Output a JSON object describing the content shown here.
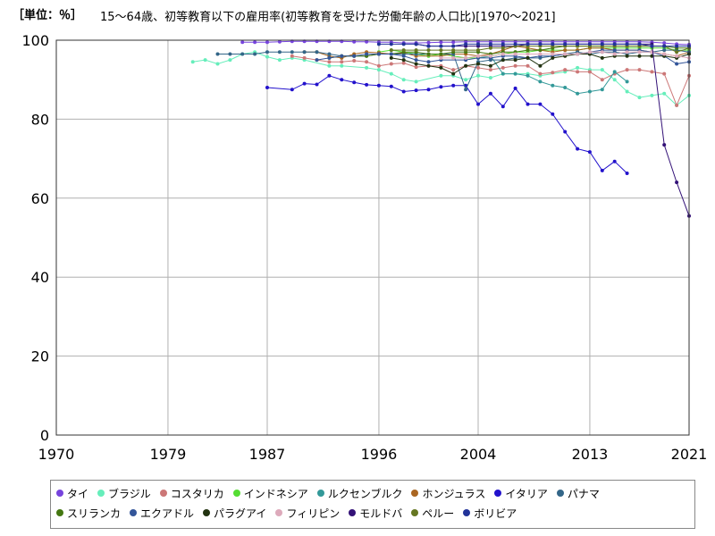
{
  "header": {
    "unit": "［単位：％］",
    "title": "15～64歳、初等教育以下の雇用率(初等教育を受けた労働年齢の人口比)[1970～2021]"
  },
  "chart_data": {
    "type": "line",
    "xlim": [
      1970,
      2021
    ],
    "ylim": [
      0,
      100
    ],
    "x_ticks": [
      1970,
      1979,
      1987,
      1996,
      2004,
      2013,
      2021
    ],
    "y_ticks": [
      0,
      20,
      40,
      60,
      80,
      100
    ],
    "grid": true,
    "legend_position": "bottom",
    "series": [
      {
        "name": "タイ",
        "color": "#7744dd",
        "x": [
          1985,
          1986,
          1987,
          1988,
          1989,
          1990,
          1991,
          1992,
          1993,
          1994,
          1995,
          1996,
          1997,
          1998,
          1999,
          2000,
          2001,
          2002,
          2003,
          2004,
          2005,
          2006,
          2007,
          2008,
          2009,
          2010,
          2011,
          2012,
          2013,
          2014,
          2015,
          2016,
          2017,
          2018,
          2019,
          2020,
          2021
        ],
        "y": [
          99.5,
          99.5,
          99.5,
          99.6,
          99.7,
          99.7,
          99.7,
          99.7,
          99.7,
          99.6,
          99.6,
          99.5,
          99.5,
          99.3,
          99.3,
          99.4,
          99.5,
          99.5,
          99.6,
          99.6,
          99.6,
          99.6,
          99.6,
          99.6,
          99.6,
          99.6,
          99.6,
          99.6,
          99.6,
          99.6,
          99.6,
          99.6,
          99.6,
          99.5,
          99.3,
          99.0,
          98.9
        ]
      },
      {
        "name": "ブラジル",
        "color": "#66eebb",
        "x": [
          1981,
          1982,
          1983,
          1984,
          1985,
          1986,
          1987,
          1988,
          1989,
          1990,
          1992,
          1993,
          1995,
          1996,
          1997,
          1998,
          1999,
          2001,
          2002,
          2003,
          2004,
          2005,
          2006,
          2007,
          2008,
          2009,
          2011,
          2012,
          2013,
          2014,
          2015,
          2016,
          2017,
          2018,
          2019,
          2020,
          2021
        ],
        "y": [
          94.5,
          95,
          94,
          95,
          96.5,
          97,
          95.8,
          95,
          95.5,
          95,
          93.5,
          93.5,
          93,
          92.5,
          91.5,
          90,
          89.5,
          91,
          91,
          90,
          91,
          90.5,
          91.5,
          91.5,
          91.5,
          91,
          92,
          93,
          92.5,
          92.5,
          90,
          87,
          85.5,
          86,
          86.5,
          83.5,
          86
        ]
      },
      {
        "name": "コスタリカ",
        "color": "#cc7777",
        "x": [
          1989,
          1990,
          1991,
          1992,
          1993,
          1994,
          1995,
          1996,
          1997,
          1998,
          1999,
          2000,
          2001,
          2002,
          2003,
          2004,
          2005,
          2006,
          2007,
          2008,
          2009,
          2010,
          2011,
          2012,
          2013,
          2014,
          2015,
          2016,
          2017,
          2018,
          2019,
          2020,
          2021
        ],
        "y": [
          96,
          95.5,
          95,
          94.5,
          94.5,
          94.8,
          94.5,
          93.5,
          94,
          94.2,
          93.2,
          93.5,
          93.5,
          92.5,
          93.5,
          93,
          92.5,
          93,
          93.5,
          93.5,
          91.5,
          91.8,
          92.5,
          92,
          92,
          90,
          91.5,
          92.5,
          92.5,
          92,
          91.5,
          83.5,
          91
        ]
      },
      {
        "name": "インドネシア",
        "color": "#55dd33",
        "x": [
          1996,
          1997,
          1998,
          1999,
          2000,
          2001,
          2002,
          2003,
          2004,
          2005,
          2006,
          2007,
          2008,
          2009,
          2010,
          2011,
          2012,
          2013,
          2014,
          2015,
          2016,
          2017,
          2018,
          2019,
          2020,
          2021
        ],
        "y": [
          97,
          97.5,
          97,
          96.5,
          96,
          96.5,
          96,
          95.5,
          95.5,
          96,
          96.5,
          97,
          97,
          97.5,
          97.5,
          97.5,
          97.5,
          98,
          98,
          98,
          98,
          98,
          98,
          98,
          97.5,
          97.5
        ]
      },
      {
        "name": "ルクセンブルク",
        "color": "#339999",
        "x": [
          2004,
          2005,
          2006,
          2007,
          2008,
          2009,
          2010,
          2011,
          2012,
          2013,
          2014,
          2015,
          2016
        ],
        "y": [
          95.5,
          96,
          91.5,
          91.5,
          91,
          89.5,
          88.5,
          88,
          86.5,
          87,
          87.5,
          92,
          89.5
        ]
      },
      {
        "name": "ホンジュラス",
        "color": "#aa6622",
        "x": [
          1990,
          1991,
          1992,
          1993,
          1994,
          1995,
          1996,
          1997,
          1998,
          1999,
          2001,
          2002,
          2003,
          2004,
          2005,
          2006,
          2007,
          2008,
          2009,
          2010,
          2011,
          2012,
          2013,
          2014,
          2015,
          2016,
          2017,
          2018,
          2019,
          2020,
          2021
        ],
        "y": [
          97,
          97,
          96,
          95.5,
          96.5,
          97,
          96.8,
          96.5,
          96.8,
          96,
          96,
          96.5,
          96.5,
          96,
          96.5,
          97.5,
          98.5,
          98,
          97.5,
          97,
          97.5,
          97.5,
          98,
          98,
          97.5,
          97.5,
          97.5,
          97,
          96.5,
          96,
          97
        ]
      },
      {
        "name": "イタリア",
        "color": "#2211cc",
        "x": [
          1987,
          1989,
          1990,
          1991,
          1992,
          1993,
          1994,
          1995,
          1996,
          1997,
          1998,
          1999,
          2000,
          2001,
          2002,
          2003,
          2004,
          2005,
          2006,
          2007,
          2008,
          2009,
          2010,
          2011,
          2012,
          2013,
          2014,
          2015,
          2016
        ],
        "y": [
          88,
          87.5,
          89,
          88.8,
          91,
          90,
          89.3,
          88.7,
          88.5,
          88.3,
          87,
          87.3,
          87.5,
          88.2,
          88.5,
          88.5,
          83.8,
          86.5,
          83.2,
          87.8,
          83.8,
          83.8,
          81.3,
          76.8,
          72.5,
          71.7,
          67,
          69.3,
          66.3
        ]
      },
      {
        "name": "パナマ",
        "color": "#336688",
        "x": [
          1983,
          1984,
          1985,
          1986,
          1987,
          1988,
          1989,
          1990,
          1991,
          1992,
          1993,
          1994,
          1995,
          1996,
          1997,
          1998,
          1999,
          2000,
          2001,
          2002,
          2003,
          2004,
          2005,
          2006,
          2007,
          2008,
          2009,
          2010,
          2011,
          2012,
          2013,
          2014,
          2015,
          2016,
          2017,
          2018,
          2019,
          2020,
          2021
        ],
        "y": [
          96.5,
          96.5,
          96.5,
          96.5,
          97,
          97,
          97,
          97,
          97,
          96.5,
          96,
          96,
          96,
          96.5,
          96.5,
          96.5,
          96.5,
          96.5,
          96.5,
          96.5,
          87.5,
          94.5,
          95,
          95,
          95.5,
          95.5,
          95.5,
          96,
          96.5,
          97,
          96.5,
          97,
          97,
          96.5,
          97,
          97,
          97.5,
          97.5,
          97
        ]
      },
      {
        "name": "スリランカ",
        "color": "#447711",
        "x": [
          1992,
          1993,
          1994,
          1995,
          1996,
          1997,
          1998,
          1999,
          2000,
          2001,
          2002,
          2003,
          2004,
          2005,
          2006,
          2007,
          2008,
          2009,
          2010,
          2011,
          2012,
          2013,
          2014,
          2015,
          2016,
          2017,
          2018,
          2019,
          2020,
          2021
        ],
        "y": [
          95.5,
          96,
          96,
          96,
          96.5,
          96.5,
          97,
          97,
          96.5,
          96.5,
          97,
          97,
          97,
          96.5,
          97,
          97,
          97.5,
          97.5,
          98,
          98.5,
          98.5,
          98.5,
          98.5,
          98.5,
          98.5,
          98.5,
          98.5,
          98.5,
          98,
          98
        ]
      },
      {
        "name": "エクアドル",
        "color": "#335599",
        "x": [
          1991,
          1992,
          1993,
          1994,
          1995,
          1996,
          1997,
          1998,
          1999,
          2000,
          2001,
          2003,
          2004,
          2005,
          2006,
          2007,
          2008,
          2009,
          2010,
          2011,
          2012,
          2013,
          2014,
          2015,
          2016,
          2017,
          2018,
          2019,
          2020,
          2021
        ],
        "y": [
          95,
          95.5,
          96,
          96,
          96.5,
          96.5,
          96.5,
          96,
          95,
          94.5,
          95,
          95,
          95.5,
          95.5,
          96,
          96,
          95.5,
          96,
          96,
          96.5,
          96.5,
          97,
          97.5,
          97.5,
          97.5,
          97.5,
          97,
          96,
          94,
          94.5
        ]
      },
      {
        "name": "パラグアイ",
        "color": "#223311",
        "x": [
          1997,
          1998,
          1999,
          2000,
          2001,
          2002,
          2003,
          2004,
          2005,
          2006,
          2007,
          2008,
          2009,
          2010,
          2011,
          2012,
          2013,
          2014,
          2015,
          2016,
          2017,
          2018,
          2019,
          2020,
          2021
        ],
        "y": [
          95.5,
          95,
          94,
          93.5,
          93,
          91.5,
          93.5,
          94,
          93.5,
          95,
          95,
          95.5,
          93.5,
          95.5,
          96,
          96.5,
          96.5,
          95.5,
          96,
          96,
          96,
          96,
          96,
          95.5,
          96.5
        ]
      },
      {
        "name": "フィリピン",
        "color": "#ddaabb",
        "x": [
          2001,
          2002,
          2003,
          2004,
          2005,
          2006,
          2007,
          2008,
          2009,
          2010,
          2011,
          2012,
          2013,
          2014,
          2015,
          2016,
          2017,
          2018,
          2019,
          2020,
          2021
        ],
        "y": [
          95.5,
          95.5,
          95.5,
          96,
          96,
          96.5,
          96.5,
          96.5,
          96.5,
          96.5,
          96.5,
          96.5,
          97,
          97,
          96.5,
          97,
          97,
          97,
          96.5,
          96,
          95.5
        ]
      },
      {
        "name": "モルドバ",
        "color": "#331177",
        "x": [
          1999,
          2000,
          2001,
          2002,
          2003,
          2004,
          2005,
          2006,
          2007,
          2008,
          2009,
          2010,
          2011,
          2012,
          2013,
          2014,
          2015,
          2016,
          2017,
          2018,
          2019,
          2020,
          2021
        ],
        "y": [
          99,
          98.5,
          98.5,
          98.5,
          98.5,
          98.5,
          98.5,
          98.5,
          98.5,
          99,
          99,
          99,
          99,
          99,
          99,
          99,
          99,
          99,
          99,
          99,
          73.5,
          64,
          55.5
        ]
      },
      {
        "name": "ペルー",
        "color": "#667722",
        "x": [
          1997,
          1998,
          1999,
          2000,
          2001,
          2002,
          2003,
          2004,
          2005,
          2006,
          2007,
          2008,
          2009,
          2010,
          2011,
          2012,
          2013,
          2014,
          2015,
          2016,
          2017,
          2018,
          2019,
          2020,
          2021
        ],
        "y": [
          97.5,
          97.5,
          97.5,
          97.5,
          97.5,
          97.5,
          97.5,
          97.5,
          98,
          98,
          98.5,
          98.5,
          98.5,
          98.5,
          98.5,
          98.5,
          98.5,
          98.5,
          98.5,
          98.5,
          98.5,
          98.5,
          98.5,
          97,
          98
        ]
      },
      {
        "name": "ボリビア",
        "color": "#223399",
        "x": [
          1996,
          1997,
          1998,
          1999,
          2000,
          2001,
          2002,
          2003,
          2004,
          2005,
          2006,
          2007,
          2008,
          2009,
          2010,
          2011,
          2012,
          2013,
          2014,
          2015,
          2016,
          2017,
          2018,
          2019,
          2020,
          2021
        ],
        "y": [
          99,
          99,
          99,
          99,
          98.5,
          98.5,
          98.5,
          99,
          99,
          99,
          99,
          99,
          99,
          99,
          99,
          99,
          99,
          99,
          99,
          99,
          99,
          99,
          98.5,
          98.5,
          98.5,
          98.5
        ]
      }
    ]
  }
}
